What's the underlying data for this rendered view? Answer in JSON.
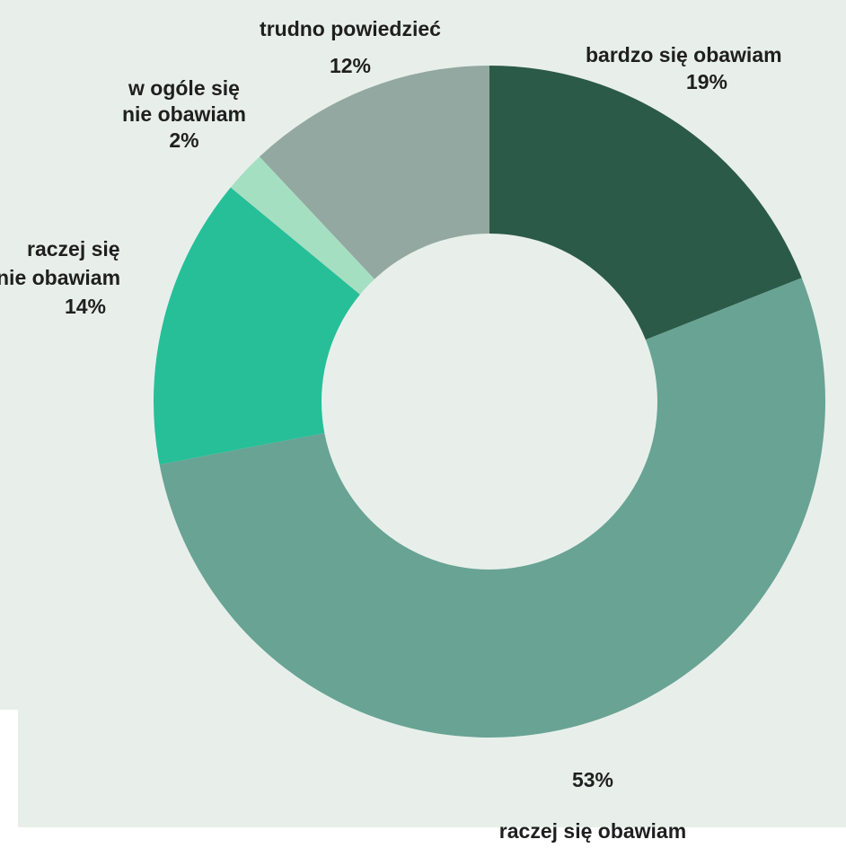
{
  "colors": {
    "panel_background": "#e8efeb",
    "page_background": "#ffffff",
    "donut_hole": "#e8efeb",
    "label_text": "#1f1f1f"
  },
  "chart_data": {
    "type": "pie",
    "style": "donut",
    "start_direction": "top, clockwise",
    "slices": [
      {
        "label": "bardzo się obawiam",
        "value": 19,
        "value_label": "19%",
        "color": "#2b5a48"
      },
      {
        "label": "raczej się obawiam",
        "value": 53,
        "value_label": "53%",
        "color": "#68a394"
      },
      {
        "label": "raczej się nie obawiam",
        "value": 14,
        "value_label": "14%",
        "color": "#26bf98"
      },
      {
        "label": "w ogóle się nie obawiam",
        "value": 2,
        "value_label": "2%",
        "color": "#a5dfc1"
      },
      {
        "label": "trudno powiedzieć",
        "value": 12,
        "value_label": "12%",
        "color": "#93a8a1"
      }
    ]
  }
}
